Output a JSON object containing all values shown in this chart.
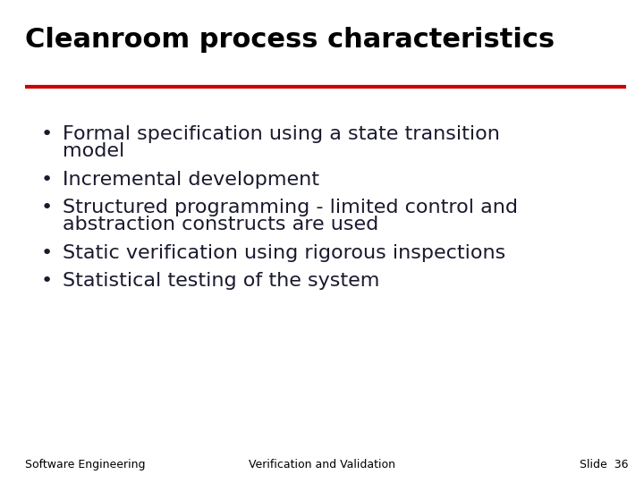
{
  "title": "Cleanroom process characteristics",
  "title_color": "#000000",
  "title_fontsize": 22,
  "title_bold": true,
  "underline_color": "#cc0000",
  "underline_lw": 3.0,
  "background_color": "#ffffff",
  "bullet_color": "#1a1a2e",
  "text_color": "#1a1a2e",
  "bullet_items": [
    [
      "Formal specification using a state transition",
      "model"
    ],
    [
      "Incremental development"
    ],
    [
      "Structured programming - limited control and",
      "abstraction constructs are used"
    ],
    [
      "Static verification using rigorous inspections"
    ],
    [
      "Statistical testing of the system"
    ]
  ],
  "bullet_fontsize": 16,
  "footer_left": "Software Engineering",
  "footer_center": "Verification and Validation",
  "footer_right": "Slide  36",
  "footer_fontsize": 9,
  "footer_color": "#000000"
}
